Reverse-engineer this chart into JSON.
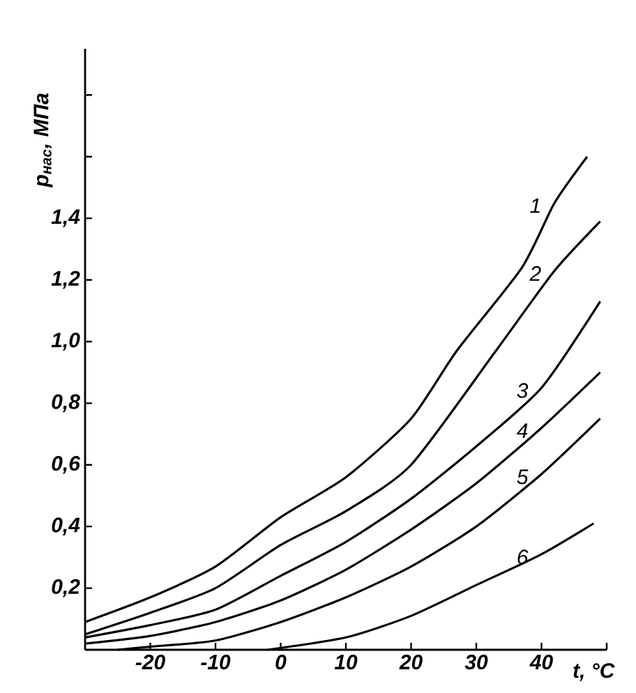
{
  "chart_data": {
    "type": "line",
    "xlabel": "t, °C",
    "ylabel": "p$_{нас}$, МПа",
    "xlim": [
      -30,
      50
    ],
    "ylim": [
      0,
      1.95
    ],
    "xticks": [
      -20,
      -10,
      0,
      10,
      20,
      30,
      40,
      {
        "value": 50,
        "label": null
      }
    ],
    "yticks": [
      {
        "value": 0.2,
        "label": "0,2"
      },
      {
        "value": 0.4,
        "label": "0,4"
      },
      {
        "value": 0.6,
        "label": "0,6"
      },
      {
        "value": 0.8,
        "label": "0,8"
      },
      {
        "value": 1.0,
        "label": "1,0"
      },
      {
        "value": 1.2,
        "label": "1,2"
      },
      {
        "value": 1.4,
        "label": "1,4"
      },
      {
        "value": 1.6,
        "label": null
      },
      {
        "value": 1.8,
        "label": null
      }
    ],
    "grid": false,
    "legend": false,
    "marker": "none",
    "line_style": "solid",
    "series": [
      {
        "name": "1",
        "color": "#000000",
        "x": [
          -30,
          -20,
          -10,
          0,
          10,
          20,
          27,
          37,
          42,
          47
        ],
        "values": [
          0.09,
          0.17,
          0.27,
          0.43,
          0.56,
          0.75,
          0.97,
          1.24,
          1.45,
          1.6
        ]
      },
      {
        "name": "2",
        "color": "#000000",
        "x": [
          -30,
          -20,
          -10,
          0,
          10,
          20,
          33,
          42,
          49
        ],
        "values": [
          0.05,
          0.12,
          0.2,
          0.34,
          0.45,
          0.6,
          0.97,
          1.23,
          1.39
        ]
      },
      {
        "name": "3",
        "color": "#000000",
        "x": [
          -30,
          -20,
          -10,
          0,
          10,
          20,
          30,
          40,
          49
        ],
        "values": [
          0.04,
          0.08,
          0.13,
          0.24,
          0.35,
          0.49,
          0.66,
          0.85,
          1.13
        ]
      },
      {
        "name": "4",
        "color": "#000000",
        "x": [
          -30,
          -20,
          -10,
          0,
          10,
          20,
          30,
          40,
          49
        ],
        "values": [
          0.02,
          0.045,
          0.09,
          0.16,
          0.26,
          0.39,
          0.54,
          0.72,
          0.9
        ]
      },
      {
        "name": "5",
        "color": "#000000",
        "x": [
          -25,
          -20,
          -10,
          0,
          10,
          20,
          30,
          40,
          49
        ],
        "values": [
          0,
          0.01,
          0.03,
          0.09,
          0.17,
          0.27,
          0.4,
          0.57,
          0.75
        ]
      },
      {
        "name": "6",
        "color": "#000000",
        "x": [
          -2,
          10,
          20,
          30,
          40,
          48
        ],
        "values": [
          0,
          0.04,
          0.11,
          0.21,
          0.31,
          0.41
        ]
      }
    ]
  }
}
